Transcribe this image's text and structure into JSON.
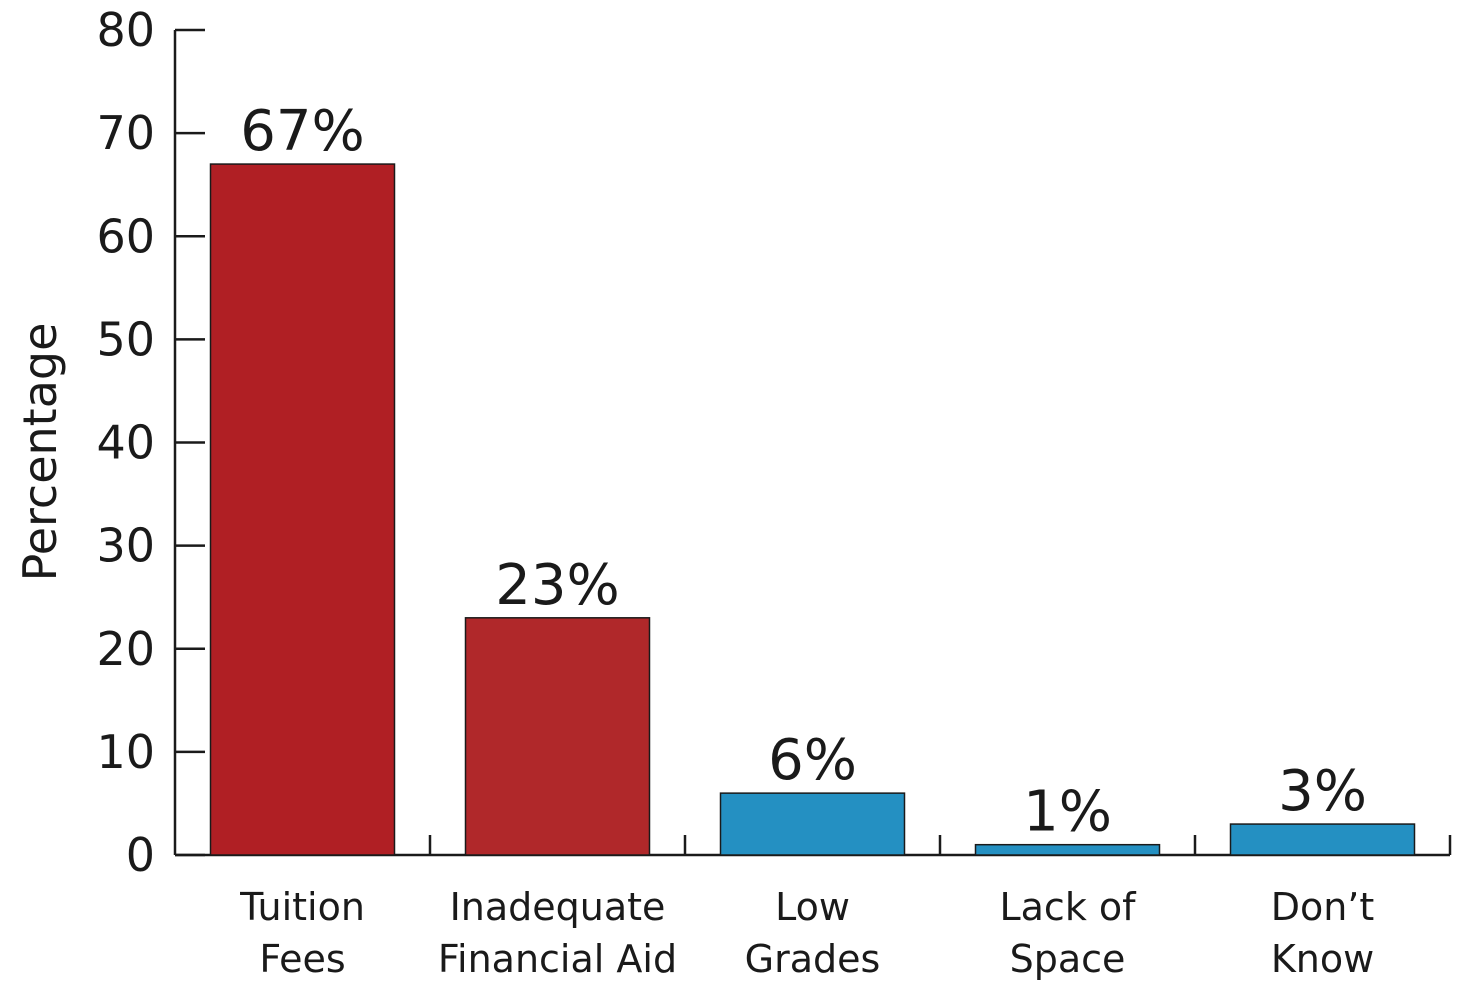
{
  "chart_data": {
    "type": "bar",
    "title": "",
    "xlabel": "",
    "ylabel": "Percentage",
    "ylim": [
      0,
      80
    ],
    "yticks": [
      0,
      10,
      20,
      30,
      40,
      50,
      60,
      70,
      80
    ],
    "grid": false,
    "categories": [
      [
        "Tuition",
        "Fees"
      ],
      [
        "Inadequate",
        "Financial Aid"
      ],
      [
        "Low",
        "Grades"
      ],
      [
        "Lack of",
        "Space"
      ],
      [
        "Don’t",
        "Know"
      ]
    ],
    "values": [
      67,
      23,
      6,
      1,
      3
    ],
    "data_labels": [
      "67%",
      "23%",
      "6%",
      "1%",
      "3%"
    ],
    "bar_colors": [
      "#b01f24",
      "#b0282a",
      "#2490c2",
      "#2490c2",
      "#2490c2"
    ]
  }
}
